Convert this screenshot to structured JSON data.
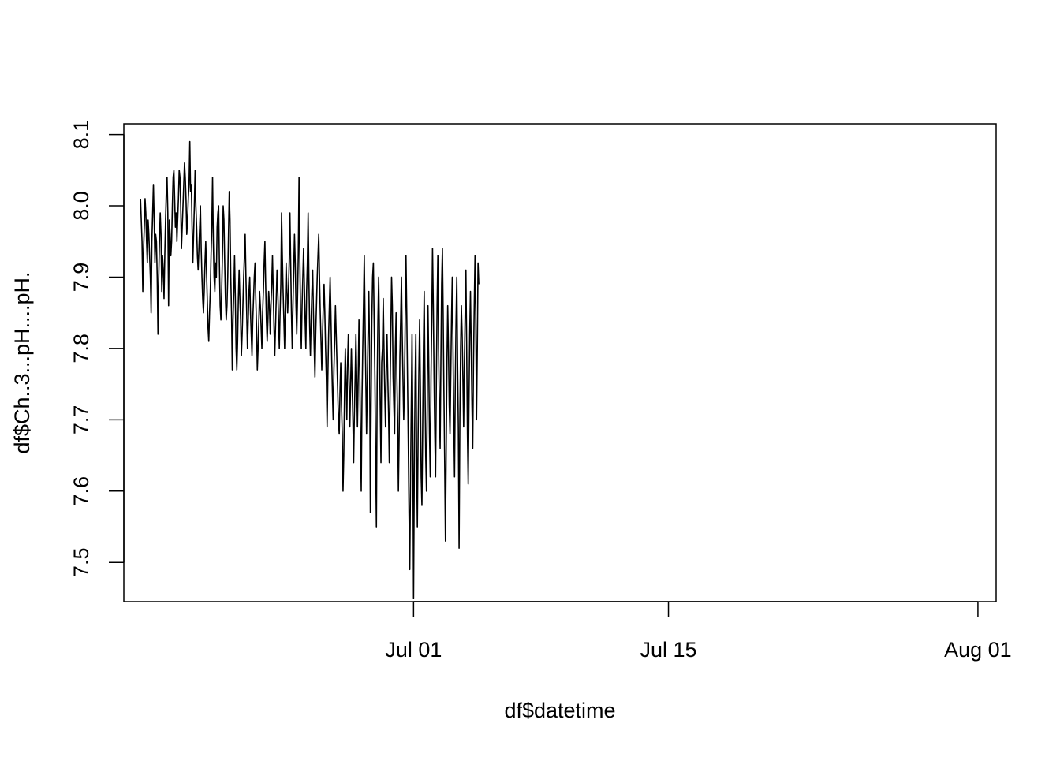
{
  "chart_data": {
    "type": "line",
    "xlabel": "df$datetime",
    "ylabel": "df$Ch..3...pH....pH.",
    "xlim": [
      "2018-06-15T02:00",
      "2018-08-02T00:00"
    ],
    "ylim": [
      7.445,
      8.115
    ],
    "x_ticks": [
      {
        "label": "Jul 01",
        "x": "2018-07-01"
      },
      {
        "label": "Jul 15",
        "x": "2018-07-15"
      },
      {
        "label": "Aug 01",
        "x": "2018-08-01"
      }
    ],
    "y_ticks": [
      {
        "label": "7.5",
        "y": 7.5
      },
      {
        "label": "7.6",
        "y": 7.6
      },
      {
        "label": "7.7",
        "y": 7.7
      },
      {
        "label": "7.8",
        "y": 7.8
      },
      {
        "label": "7.9",
        "y": 7.9
      },
      {
        "label": "8.0",
        "y": 8.0
      },
      {
        "label": "8.1",
        "y": 8.1
      }
    ],
    "grid": false,
    "box": true,
    "line_color": "#000000",
    "series": [
      {
        "x_start": "2018-06-16T00:00",
        "step_hours": 1,
        "values": [
          8.01,
          7.98,
          7.95,
          7.88,
          7.94,
          7.97,
          8.01,
          7.99,
          7.95,
          7.92,
          7.98,
          7.96,
          7.93,
          7.9,
          7.85,
          7.95,
          7.99,
          8.03,
          7.98,
          7.92,
          7.96,
          7.95,
          7.9,
          7.82,
          7.9,
          7.95,
          7.99,
          7.96,
          7.88,
          7.93,
          7.91,
          7.87,
          7.93,
          7.98,
          8.02,
          8.04,
          7.99,
          7.86,
          7.98,
          7.96,
          7.93,
          7.95,
          8.0,
          8.04,
          8.05,
          8.01,
          7.97,
          7.99,
          7.95,
          7.98,
          8.01,
          8.05,
          8.04,
          8.0,
          7.94,
          7.97,
          8.0,
          8.03,
          8.06,
          8.04,
          8.01,
          7.96,
          7.98,
          8.01,
          8.03,
          8.09,
          8.02,
          8.03,
          7.97,
          7.92,
          7.96,
          8.0,
          8.05,
          8.0,
          7.97,
          7.93,
          7.91,
          7.94,
          7.97,
          8.0,
          7.94,
          7.9,
          7.87,
          7.85,
          7.88,
          7.92,
          7.95,
          7.91,
          7.87,
          7.83,
          7.81,
          7.85,
          7.88,
          7.93,
          7.97,
          8.04,
          7.95,
          7.9,
          7.88,
          7.92,
          7.9,
          7.97,
          7.99,
          8.0,
          7.92,
          7.86,
          7.84,
          7.88,
          7.93,
          8.0,
          7.98,
          7.92,
          7.87,
          7.84,
          7.86,
          7.9,
          7.96,
          8.02,
          7.98,
          7.9,
          7.85,
          7.77,
          7.84,
          7.88,
          7.93,
          7.87,
          7.8,
          7.77,
          7.81,
          7.87,
          7.91,
          7.87,
          7.84,
          7.79,
          7.82,
          7.86,
          7.9,
          7.93,
          7.96,
          7.9,
          7.85,
          7.8,
          7.84,
          7.88,
          7.9,
          7.85,
          7.82,
          7.79,
          7.84,
          7.87,
          7.9,
          7.92,
          7.87,
          7.83,
          7.77,
          7.8,
          7.84,
          7.88,
          7.86,
          7.83,
          7.8,
          7.85,
          7.88,
          7.92,
          7.95,
          7.89,
          7.84,
          7.81,
          7.84,
          7.88,
          7.86,
          7.82,
          7.86,
          7.89,
          7.93,
          7.88,
          7.83,
          7.79,
          7.83,
          7.87,
          7.91,
          7.88,
          7.84,
          7.8,
          7.85,
          7.89,
          7.99,
          7.93,
          7.88,
          7.84,
          7.8,
          7.86,
          7.92,
          7.88,
          7.85,
          7.88,
          7.92,
          7.99,
          7.92,
          7.85,
          7.8,
          7.86,
          7.91,
          7.96,
          7.92,
          7.86,
          7.82,
          7.87,
          7.93,
          8.04,
          7.93,
          7.85,
          7.8,
          7.86,
          7.9,
          7.94,
          7.89,
          7.84,
          7.8,
          7.88,
          7.92,
          7.99,
          7.9,
          7.83,
          7.79,
          7.84,
          7.88,
          7.91,
          7.85,
          7.8,
          7.76,
          7.82,
          7.86,
          7.9,
          7.93,
          7.96,
          7.9,
          7.85,
          7.81,
          7.77,
          7.82,
          7.86,
          7.89,
          7.85,
          7.8,
          7.76,
          7.69,
          7.76,
          7.82,
          7.86,
          7.9,
          7.85,
          7.79,
          7.74,
          7.7,
          7.77,
          7.81,
          7.86,
          7.82,
          7.78,
          7.74,
          7.7,
          7.68,
          7.74,
          7.78,
          7.72,
          7.68,
          7.6,
          7.65,
          7.74,
          7.8,
          7.75,
          7.7,
          7.78,
          7.82,
          7.75,
          7.69,
          7.75,
          7.8,
          7.75,
          7.7,
          7.64,
          7.71,
          7.76,
          7.82,
          7.76,
          7.69,
          7.76,
          7.84,
          7.77,
          7.68,
          7.6,
          7.73,
          7.8,
          7.86,
          7.93,
          7.84,
          7.76,
          7.68,
          7.75,
          7.82,
          7.88,
          7.8,
          7.57,
          7.72,
          7.84,
          7.9,
          7.92,
          7.84,
          7.76,
          7.65,
          7.55,
          7.75,
          7.84,
          7.9,
          7.82,
          7.72,
          7.64,
          7.78,
          7.8,
          7.87,
          7.8,
          7.74,
          7.69,
          7.77,
          7.82,
          7.76,
          7.71,
          7.64,
          7.74,
          7.82,
          7.9,
          7.86,
          7.76,
          7.72,
          7.68,
          7.8,
          7.85,
          7.76,
          7.7,
          7.6,
          7.68,
          7.79,
          7.84,
          7.9,
          7.82,
          7.76,
          7.7,
          7.75,
          7.84,
          7.93,
          7.85,
          7.76,
          7.67,
          7.57,
          7.49,
          7.62,
          7.72,
          7.82,
          7.69,
          7.45,
          7.63,
          7.75,
          7.82,
          7.65,
          7.55,
          7.68,
          7.77,
          7.84,
          7.74,
          7.62,
          7.58,
          7.69,
          7.8,
          7.88,
          7.76,
          7.65,
          7.6,
          7.72,
          7.86,
          7.78,
          7.68,
          7.62,
          7.76,
          7.84,
          7.94,
          7.86,
          7.76,
          7.68,
          7.62,
          7.75,
          7.86,
          7.93,
          7.8,
          7.72,
          7.66,
          7.78,
          7.89,
          7.94,
          7.85,
          7.74,
          7.64,
          7.53,
          7.66,
          7.78,
          7.86,
          7.8,
          7.72,
          7.68,
          7.76,
          7.84,
          7.9,
          7.8,
          7.7,
          7.62,
          7.75,
          7.84,
          7.9,
          7.78,
          7.69,
          7.52,
          7.7,
          7.8,
          7.86,
          7.82,
          7.76,
          7.69,
          7.78,
          7.85,
          7.91,
          7.8,
          7.68,
          7.61,
          7.72,
          7.82,
          7.88,
          7.8,
          7.72,
          7.66,
          7.78,
          7.86,
          7.93,
          7.84,
          7.7,
          7.8,
          7.92,
          7.89
        ]
      }
    ]
  }
}
